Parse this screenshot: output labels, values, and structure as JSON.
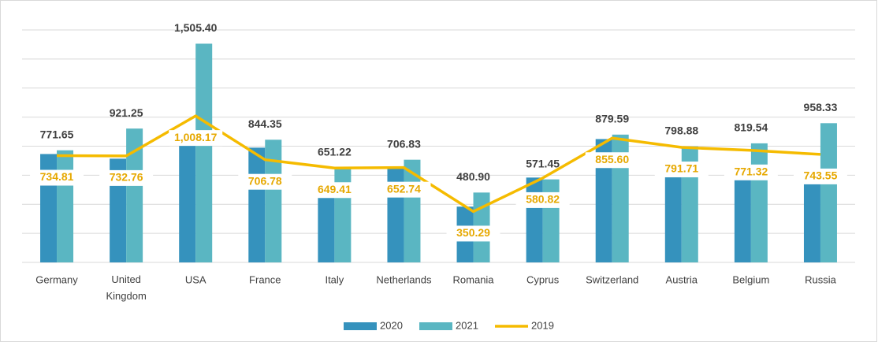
{
  "chart_data": {
    "type": "bar",
    "categories": [
      "Germany",
      "United Kingdom",
      "USA",
      "France",
      "Italy",
      "Netherlands",
      "Romania",
      "Cyprus",
      "Switzerland",
      "Austria",
      "Belgium",
      "Russia"
    ],
    "series": [
      {
        "name": "2020",
        "color": "#3592bd",
        "values": [
          746,
          714,
          880,
          790,
          449,
          654,
          384,
          584,
          849,
          589,
          573,
          540
        ]
      },
      {
        "name": "2021",
        "color": "#5ab6c2",
        "values": [
          771.65,
          921.25,
          1505.4,
          844.35,
          651.22,
          706.83,
          480.9,
          571.45,
          879.59,
          798.88,
          819.54,
          958.33
        ],
        "value_labels": [
          "771.65",
          "921.25",
          "1,505.40",
          "844.35",
          "651.22",
          "706.83",
          "480.90",
          "571.45",
          "879.59",
          "798.88",
          "819.54",
          "958.33"
        ]
      },
      {
        "name": "2019",
        "color": "#f5bb00",
        "type": "line",
        "values": [
          734.81,
          732.76,
          1008.17,
          706.78,
          649.41,
          652.74,
          350.29,
          580.82,
          855.6,
          791.71,
          771.32,
          743.55
        ],
        "value_labels": [
          "734.81",
          "732.76",
          "1,008.17",
          "706.78",
          "649.41",
          "652.74",
          "350.29",
          "580.82",
          "855.60",
          "791.71",
          "771.32",
          "743.55"
        ]
      }
    ],
    "ylim": [
      0,
      1600
    ],
    "yticks": [
      0,
      200,
      400,
      600,
      800,
      1000,
      1200,
      1400,
      1600
    ],
    "grid": true,
    "legend": "bottom"
  }
}
